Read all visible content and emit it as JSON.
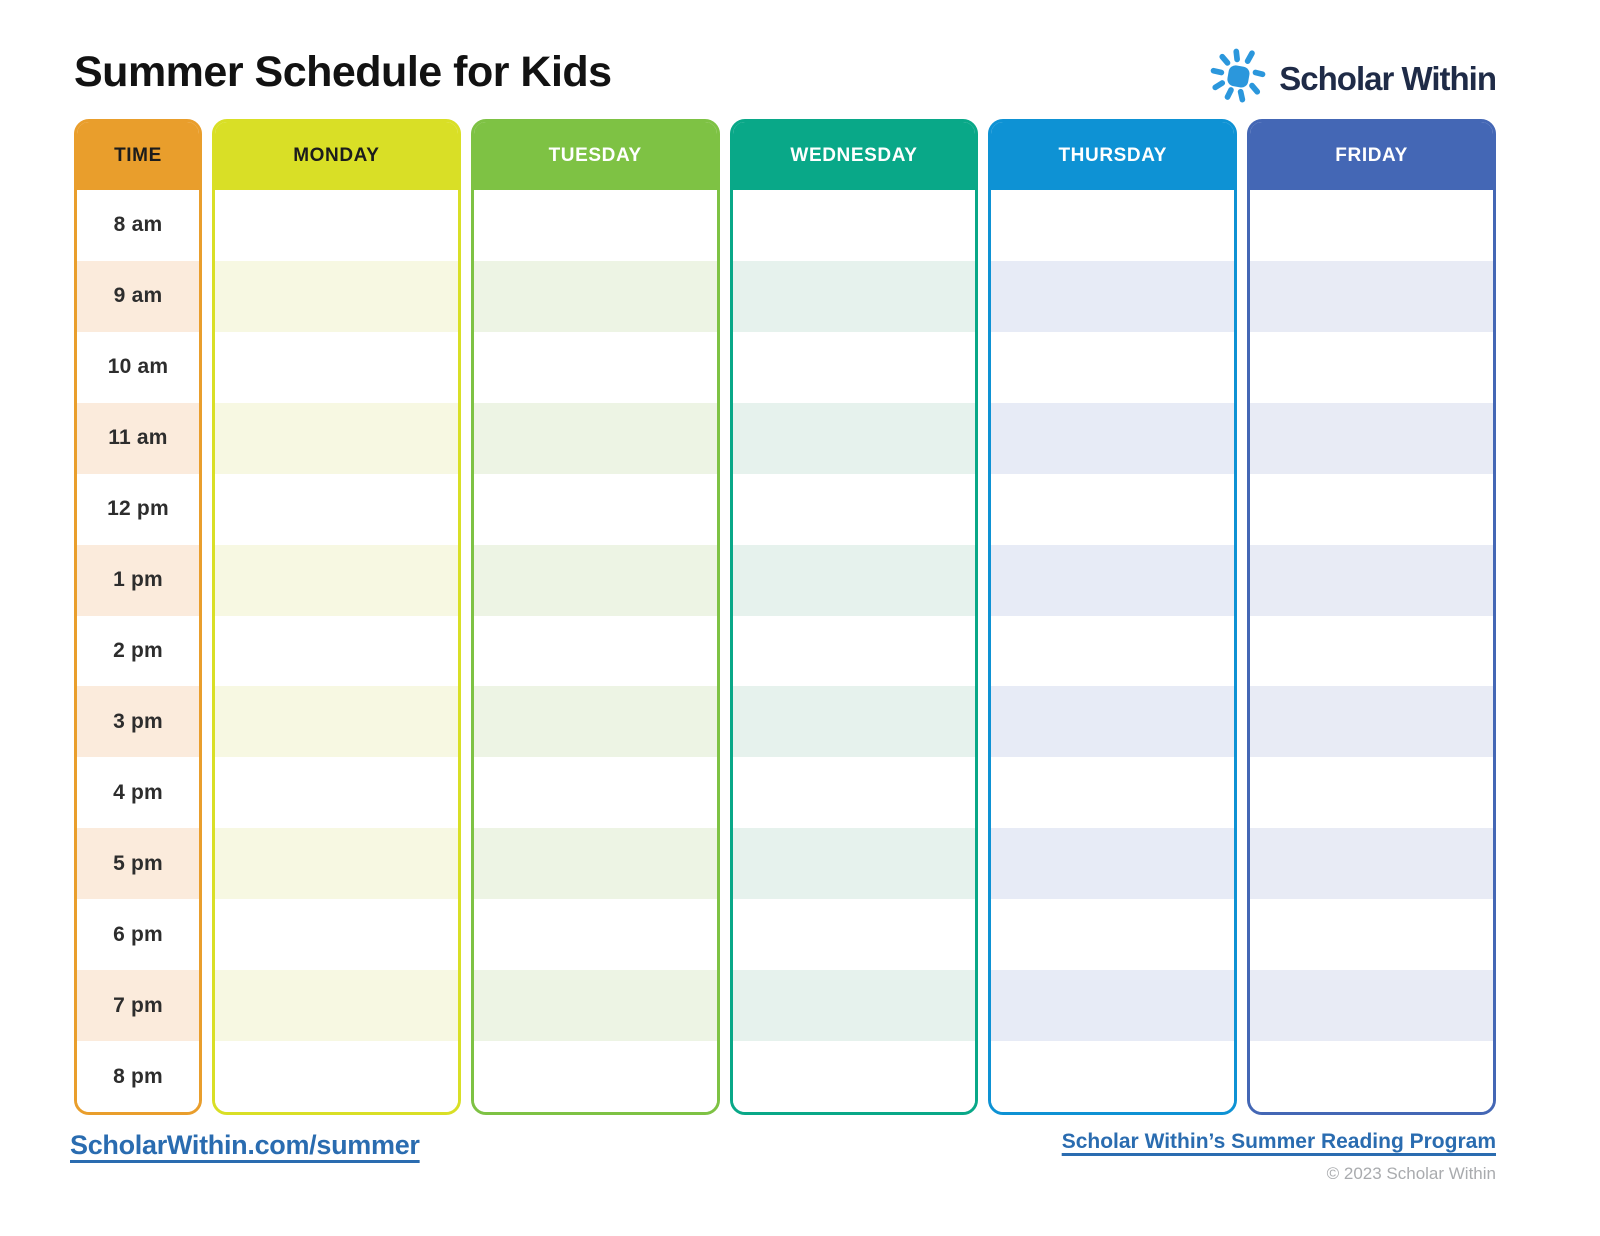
{
  "page": {
    "title": "Summer Schedule for Kids"
  },
  "logo": {
    "brand": "Scholar Within",
    "icon": "sun-icon",
    "sun_color": "#2B97DC",
    "text_color": "#1F2B47"
  },
  "schedule": {
    "time_column": {
      "header": "TIME",
      "color": "#E99E2C",
      "tint": "#FBEBDC",
      "header_text_color": "#1C1C1C",
      "times": [
        "8 am",
        "9 am",
        "10 am",
        "11 am",
        "12 pm",
        "1 pm",
        "2 pm",
        "3 pm",
        "4 pm",
        "5 pm",
        "6 pm",
        "7 pm",
        "8 pm"
      ]
    },
    "day_columns": [
      {
        "label": "MONDAY",
        "color": "#D9DF26",
        "tint": "#F7F8E2",
        "header_text_color": "#1C1C1C"
      },
      {
        "label": "TUESDAY",
        "color": "#7EC244",
        "tint": "#EDF4E4",
        "header_text_color": "#FFFFFF"
      },
      {
        "label": "WEDNESDAY",
        "color": "#09A888",
        "tint": "#E6F2ED",
        "header_text_color": "#FFFFFF"
      },
      {
        "label": "THURSDAY",
        "color": "#0E92D4",
        "tint": "#E7EBF6",
        "header_text_color": "#FFFFFF"
      },
      {
        "label": "FRIDAY",
        "color": "#4467B5",
        "tint": "#E8EBF5",
        "header_text_color": "#FFFFFF"
      }
    ],
    "rows_count": 13
  },
  "footer": {
    "left_link": "ScholarWithin.com/summer",
    "right_link": "Scholar Within’s Summer Reading Program",
    "copyright": "© 2023 Scholar Within",
    "link_color": "#2A6CB0"
  }
}
